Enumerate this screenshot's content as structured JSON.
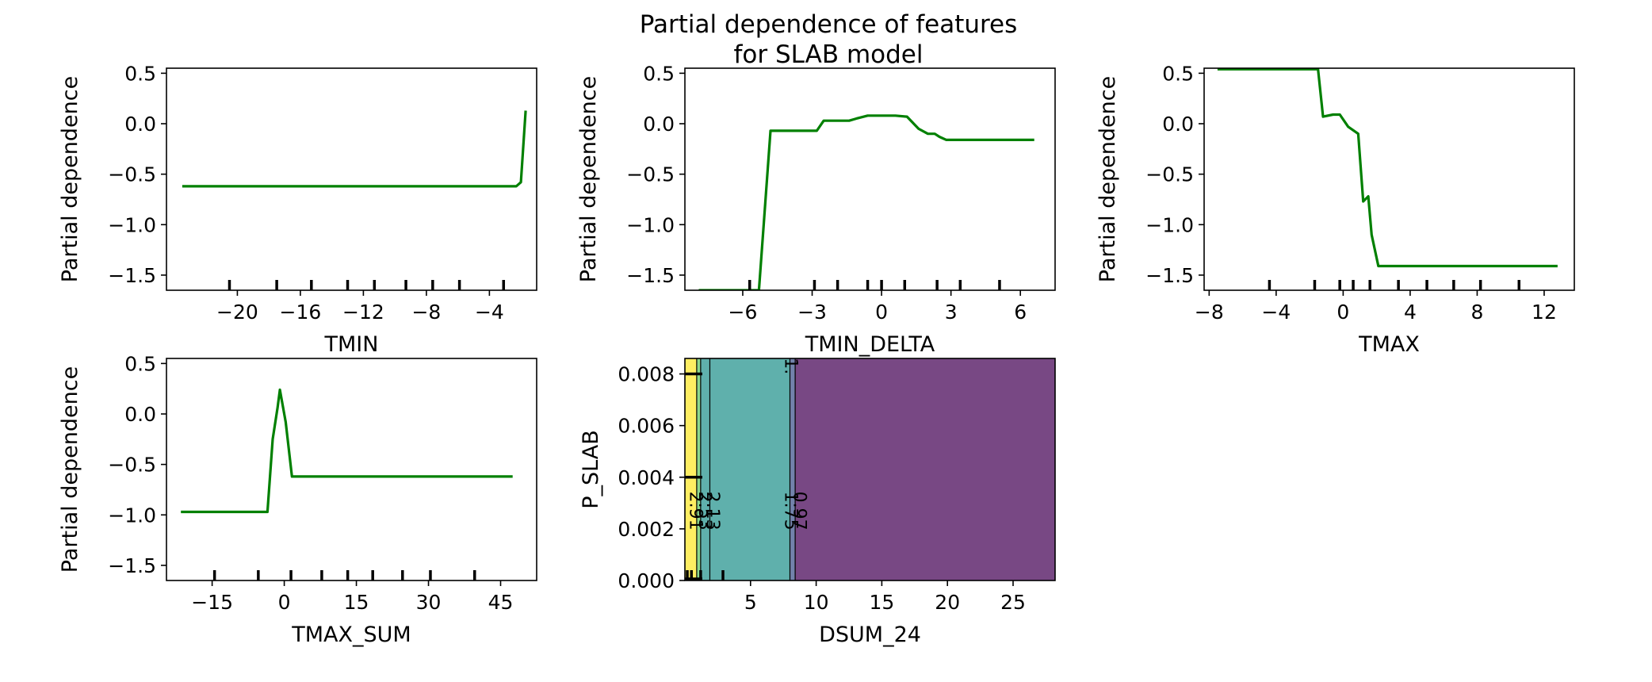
{
  "figure": {
    "title_line1": "Partial dependence of features",
    "title_line2": "for SLAB model"
  },
  "colors": {
    "line": "#008000",
    "contour_levels": [
      "#440154",
      "#3b528b",
      "#21918c",
      "#5ec962",
      "#fde725"
    ]
  },
  "chart_data": [
    {
      "type": "line",
      "xlabel": "TMIN",
      "ylabel": "Partial dependence",
      "xlim": [
        -24.5,
        -1.0
      ],
      "ylim": [
        -1.65,
        0.55
      ],
      "xticks": [
        -20,
        -16,
        -12,
        -8,
        -4
      ],
      "xtick_labels": [
        "−20",
        "−16",
        "−12",
        "−8",
        "−4"
      ],
      "yticks": [
        0.5,
        0.0,
        -0.5,
        -1.0,
        -1.5
      ],
      "ytick_labels": [
        "0.5",
        "0.0",
        "−0.5",
        "−1.0",
        "−1.5"
      ],
      "deciles": [
        -20.5,
        -17.5,
        -15.3,
        -13.0,
        -11.3,
        -9.3,
        -7.6,
        -5.9,
        -3.1
      ],
      "series": [
        {
          "x": [
            -23.5,
            -11.0,
            -3.0,
            -2.3,
            -2.0,
            -1.7
          ],
          "y": [
            -0.62,
            -0.62,
            -0.62,
            -0.62,
            -0.58,
            0.13
          ]
        }
      ]
    },
    {
      "type": "line",
      "xlabel": "TMIN_DELTA",
      "ylabel": "Partial dependence",
      "xlim": [
        -8.5,
        7.5
      ],
      "ylim": [
        -1.65,
        0.55
      ],
      "xticks": [
        -6,
        -3,
        0,
        3,
        6
      ],
      "xtick_labels": [
        "−6",
        "−3",
        "0",
        "3",
        "6"
      ],
      "yticks": [
        0.5,
        0.0,
        -0.5,
        -1.0,
        -1.5
      ],
      "ytick_labels": [
        "0.5",
        "0.0",
        "−0.5",
        "−1.0",
        "−1.5"
      ],
      "deciles": [
        -5.7,
        -2.9,
        -1.9,
        -0.6,
        0.0,
        1.0,
        2.4,
        3.4,
        5.1
      ],
      "series": [
        {
          "x": [
            -7.9,
            -5.4,
            -5.3,
            -4.8,
            -2.8,
            -2.5,
            -1.4,
            -1.1,
            -0.6,
            0.6,
            1.1,
            1.6,
            2.0,
            2.3,
            2.5,
            2.8,
            6.6
          ],
          "y": [
            -1.65,
            -1.65,
            -1.65,
            -0.07,
            -0.07,
            0.03,
            0.03,
            0.05,
            0.08,
            0.08,
            0.07,
            -0.05,
            -0.1,
            -0.1,
            -0.13,
            -0.16,
            -0.16
          ]
        }
      ]
    },
    {
      "type": "line",
      "xlabel": "TMAX",
      "ylabel": "Partial dependence",
      "xlim": [
        -8.3,
        13.8
      ],
      "ylim": [
        -1.65,
        0.55
      ],
      "xticks": [
        -8,
        -4,
        0,
        4,
        8,
        12
      ],
      "xtick_labels": [
        "−8",
        "−4",
        "0",
        "4",
        "8",
        "12"
      ],
      "yticks": [
        0.5,
        0.0,
        -0.5,
        -1.0,
        -1.5
      ],
      "ytick_labels": [
        "0.5",
        "0.0",
        "−0.5",
        "−1.0",
        "−1.5"
      ],
      "deciles": [
        -4.4,
        -1.7,
        -0.2,
        0.6,
        1.6,
        3.3,
        5.0,
        6.6,
        8.2,
        10.5
      ],
      "series": [
        {
          "x": [
            -7.5,
            -1.5,
            -1.2,
            -0.6,
            -0.2,
            0.3,
            0.9,
            1.2,
            1.5,
            1.7,
            2.1,
            12.8
          ],
          "y": [
            0.54,
            0.54,
            0.07,
            0.09,
            0.09,
            -0.03,
            -0.1,
            -0.77,
            -0.72,
            -1.1,
            -1.41,
            -1.41
          ]
        }
      ]
    },
    {
      "type": "line",
      "xlabel": "TMAX_SUM",
      "ylabel": "Partial dependence",
      "xlim": [
        -24.5,
        52.5
      ],
      "ylim": [
        -1.65,
        0.55
      ],
      "xticks": [
        -15,
        0,
        15,
        30,
        45
      ],
      "xtick_labels": [
        "−15",
        "0",
        "15",
        "30",
        "45"
      ],
      "yticks": [
        0.5,
        0.0,
        -0.5,
        -1.0,
        -1.5
      ],
      "ytick_labels": [
        "0.5",
        "0.0",
        "−0.5",
        "−1.0",
        "−1.5"
      ],
      "deciles": [
        -14.5,
        -5.4,
        1.4,
        7.8,
        13.2,
        18.4,
        24.6,
        30.4,
        39.6
      ],
      "series": [
        {
          "x": [
            -21.5,
            -3.5,
            -2.4,
            -1.4,
            -0.9,
            0.3,
            1.6,
            47.5
          ],
          "y": [
            -0.97,
            -0.97,
            -0.25,
            0.06,
            0.24,
            -0.08,
            -0.62,
            -0.62
          ]
        }
      ]
    },
    {
      "type": "heatmap",
      "xlabel": "DSUM_24",
      "ylabel": "P_SLAB",
      "xlim": [
        0,
        28.2
      ],
      "ylim": [
        0.0,
        0.0086
      ],
      "xticks": [
        5,
        10,
        15,
        20,
        25
      ],
      "xtick_labels": [
        "5",
        "10",
        "15",
        "20",
        "25"
      ],
      "yticks": [
        0.0,
        0.002,
        0.004,
        0.006,
        0.008
      ],
      "ytick_labels": [
        "0.000",
        "0.002",
        "0.004",
        "0.006",
        "0.008"
      ],
      "x_deciles": [
        0.0,
        0.5,
        1.2,
        2.9
      ],
      "y_deciles": [
        0.0,
        0.004,
        0.008
      ],
      "bands": [
        {
          "x_start": 0.0,
          "x_end": 0.9,
          "level": 4
        },
        {
          "x_start": 0.9,
          "x_end": 1.2,
          "level": 3
        },
        {
          "x_start": 1.2,
          "x_end": 1.9,
          "level": 2
        },
        {
          "x_start": 1.9,
          "x_end": 8.0,
          "level": 2
        },
        {
          "x_start": 8.0,
          "x_end": 8.4,
          "level": 1
        },
        {
          "x_start": 8.4,
          "x_end": 28.2,
          "level": 0
        }
      ],
      "contour_lines": [
        0.9,
        1.2,
        1.9,
        8.0,
        8.4
      ],
      "contour_labels": [
        {
          "text": "2.91",
          "x": 0.75,
          "y": 0.0027
        },
        {
          "text": "2.53",
          "x": 1.45,
          "y": 0.0027
        },
        {
          "text": "2.13",
          "x": 2.05,
          "y": 0.0027
        },
        {
          "text": "1.75",
          "x": 8.0,
          "y": 0.0027
        },
        {
          "text": "0.97",
          "x": 8.65,
          "y": 0.0027
        },
        {
          "text": "1.",
          "x": 8.0,
          "y": 0.0083
        }
      ]
    }
  ]
}
